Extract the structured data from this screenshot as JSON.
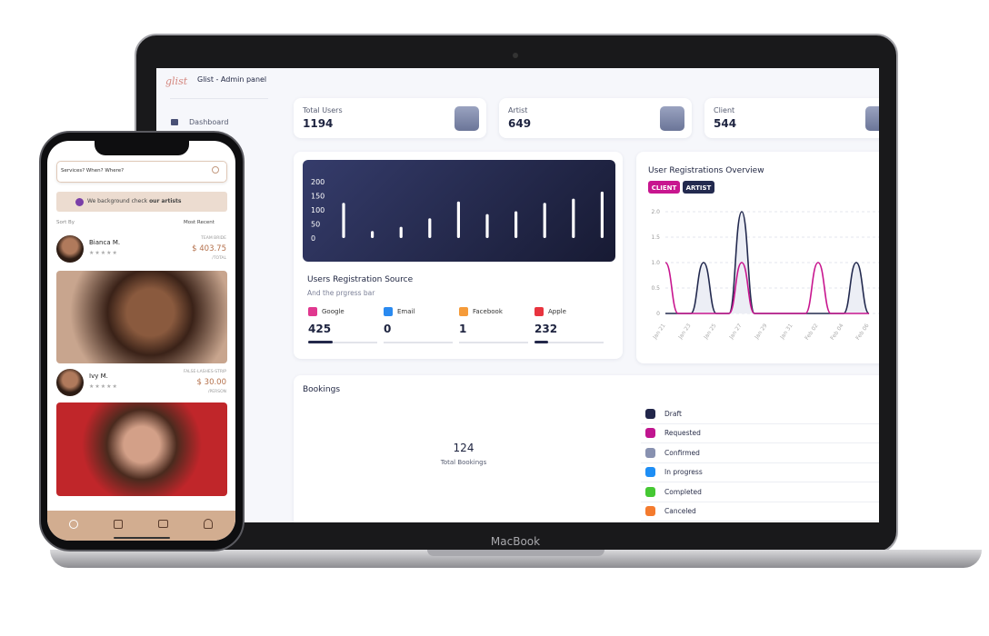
{
  "laptop": {
    "brand": "MacBook"
  },
  "admin": {
    "logo": "glist",
    "title": "Glist - Admin panel",
    "nav": [
      "Dashboard"
    ],
    "stats": [
      {
        "label": "Total Users",
        "value": 1194
      },
      {
        "label": "Artist",
        "value": 649
      },
      {
        "label": "Client",
        "value": 544
      }
    ],
    "source": {
      "title": "Users Registration Source",
      "subtitle": "And the prgress bar",
      "items": [
        {
          "name": "Google",
          "value": 425,
          "color": "#e0388f"
        },
        {
          "name": "Email",
          "value": 0,
          "color": "#2a8af0"
        },
        {
          "name": "Facebook",
          "value": 1,
          "color": "#f59b3a"
        },
        {
          "name": "Apple",
          "value": 232,
          "color": "#e8343f"
        }
      ]
    },
    "bookings": {
      "title": "Bookings",
      "total": 124,
      "total_label": "Total Bookings",
      "statuses": [
        {
          "name": "Draft",
          "color": "#22264a"
        },
        {
          "name": "Requested",
          "color": "#c0158f"
        },
        {
          "name": "Confirmed",
          "color": "#8891b0"
        },
        {
          "name": "In progress",
          "color": "#1e8ef5"
        },
        {
          "name": "Completed",
          "color": "#45c833"
        },
        {
          "name": "Canceled",
          "color": "#f47b2e"
        }
      ]
    }
  },
  "chart_data": [
    {
      "type": "bar",
      "categories": [
        null,
        null,
        null,
        null,
        null,
        null,
        null,
        null,
        null,
        null
      ],
      "values": [
        125,
        25,
        40,
        70,
        130,
        85,
        95,
        125,
        140,
        165
      ],
      "color": "#ffffff",
      "ylim": [
        0,
        200
      ],
      "yticks": [
        0,
        50,
        100,
        150,
        200
      ],
      "grid": false
    },
    {
      "type": "line",
      "title": "User Registrations Overview",
      "categories": [
        "Jan 21",
        null,
        "Jan 23",
        null,
        "Jan 25",
        null,
        "Jan 27",
        null,
        "Jan 29",
        null,
        "Jan 31",
        null,
        "Feb 02",
        null,
        "Feb 04",
        null,
        "Feb 06"
      ],
      "series": [
        {
          "name": "CLIENT",
          "color": "#c8168f",
          "values": [
            1,
            0,
            0,
            0,
            0,
            0,
            1,
            0,
            0,
            0,
            0,
            0,
            1,
            0,
            0,
            0,
            0
          ]
        },
        {
          "name": "ARTIST",
          "color": "#232a4f",
          "values": [
            0,
            0,
            0,
            1,
            0,
            0,
            2,
            0,
            0,
            0,
            0,
            0,
            0,
            0,
            0,
            1,
            0
          ]
        }
      ],
      "ylim": [
        0,
        2
      ],
      "yticks": [
        0,
        0.5,
        {
          "value": 1,
          "label": "1.0"
        },
        1.5,
        {
          "value": 2,
          "label": "2.0"
        }
      ],
      "grid": true
    }
  ],
  "phone": {
    "search": "Services? When? Where?",
    "banner_lead": "We background check",
    "banner_bold": "our artists",
    "sort_label": "Sort By",
    "sort_value": "Most Recent",
    "artists": [
      {
        "name": "Bianca M.",
        "service": "TEAM BRIDE",
        "price": "$ 403.75",
        "unit": "/TOTAL"
      },
      {
        "name": "Ivy M.",
        "service": "FALSE-LASHES-STRIP",
        "price": "$ 30.00",
        "unit": "/PERSON"
      }
    ]
  }
}
